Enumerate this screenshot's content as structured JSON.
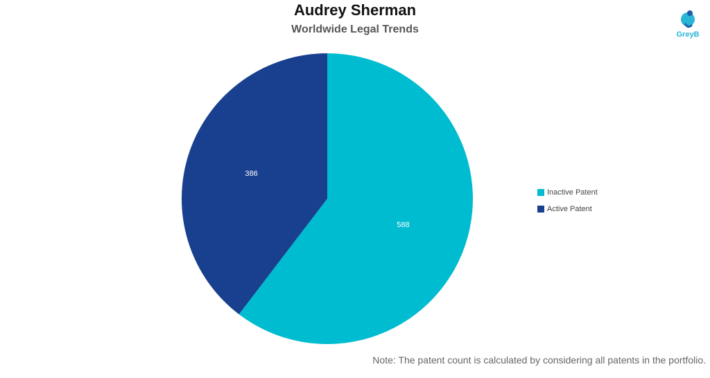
{
  "title": "Audrey Sherman",
  "subtitle": "Worldwide Legal Trends",
  "logo": {
    "text": "GreyB",
    "color": "#29b6d6"
  },
  "note": "Note: The patent count is calculated by considering all patents in the portfolio.",
  "chart_data": {
    "type": "pie",
    "slices": [
      {
        "label": "Inactive Patent",
        "value": 588,
        "color": "#00bcd0"
      },
      {
        "label": "Active Patent",
        "value": 386,
        "color": "#18408e"
      }
    ],
    "legend_position": "right"
  }
}
